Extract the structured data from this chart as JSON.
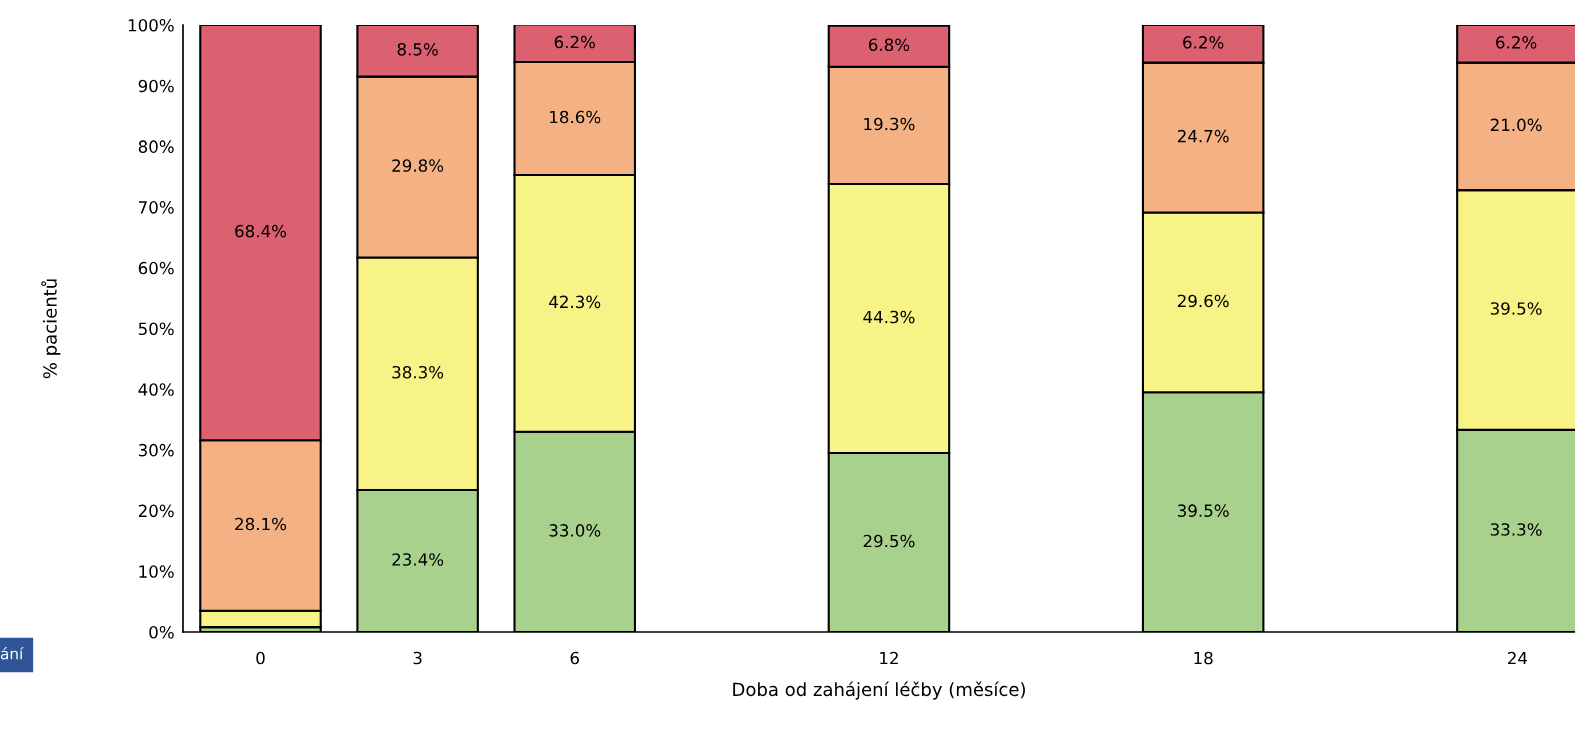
{
  "chart_data": {
    "type": "bar",
    "stacked": true,
    "xlabel": "Doba od zahájení léčby (měsíce)",
    "ylabel": "% pacientů",
    "x": [
      0,
      3,
      6,
      12,
      18,
      24
    ],
    "xlim": [
      -1.48,
      25.1
    ],
    "xticks": [
      0,
      3,
      6,
      12,
      18,
      24
    ],
    "ylim": [
      0,
      100
    ],
    "yticks": [
      {
        "value": 0,
        "label": "0%"
      },
      {
        "value": 10,
        "label": "10%"
      },
      {
        "value": 20,
        "label": "20%"
      },
      {
        "value": 30,
        "label": "30%"
      },
      {
        "value": 40,
        "label": "40%"
      },
      {
        "value": 50,
        "label": "50%"
      },
      {
        "value": 60,
        "label": "60%"
      },
      {
        "value": 70,
        "label": "70%"
      },
      {
        "value": 80,
        "label": "80%"
      },
      {
        "value": 90,
        "label": "90%"
      },
      {
        "value": 100,
        "label": "100%"
      }
    ],
    "grid": false,
    "legend": false,
    "series": [
      {
        "color": "#a9d18e",
        "values": [
          0.8,
          23.4,
          33.0,
          29.5,
          39.5,
          33.3
        ],
        "value_labels": [
          null,
          "23.4%",
          "33.0%",
          "29.5%",
          "39.5%",
          "33.3%"
        ]
      },
      {
        "color": "#f7f386",
        "values": [
          2.7,
          38.3,
          42.3,
          44.3,
          29.6,
          39.5
        ],
        "value_labels": [
          null,
          "38.3%",
          "42.3%",
          "44.3%",
          "29.6%",
          "39.5%"
        ]
      },
      {
        "color": "#f4b183",
        "values": [
          28.1,
          29.8,
          18.6,
          19.3,
          24.7,
          21.0
        ],
        "value_labels": [
          "28.1%",
          "29.8%",
          "18.6%",
          "19.3%",
          "24.7%",
          "21.0%"
        ]
      },
      {
        "color": "#db6070",
        "values": [
          68.4,
          8.5,
          6.2,
          6.8,
          6.2,
          6.2
        ],
        "value_labels": [
          "68.4%",
          "8.5%",
          "6.2%",
          "6.8%",
          "6.2%",
          "6.2%"
        ]
      }
    ],
    "annotations": [
      "ání"
    ]
  }
}
